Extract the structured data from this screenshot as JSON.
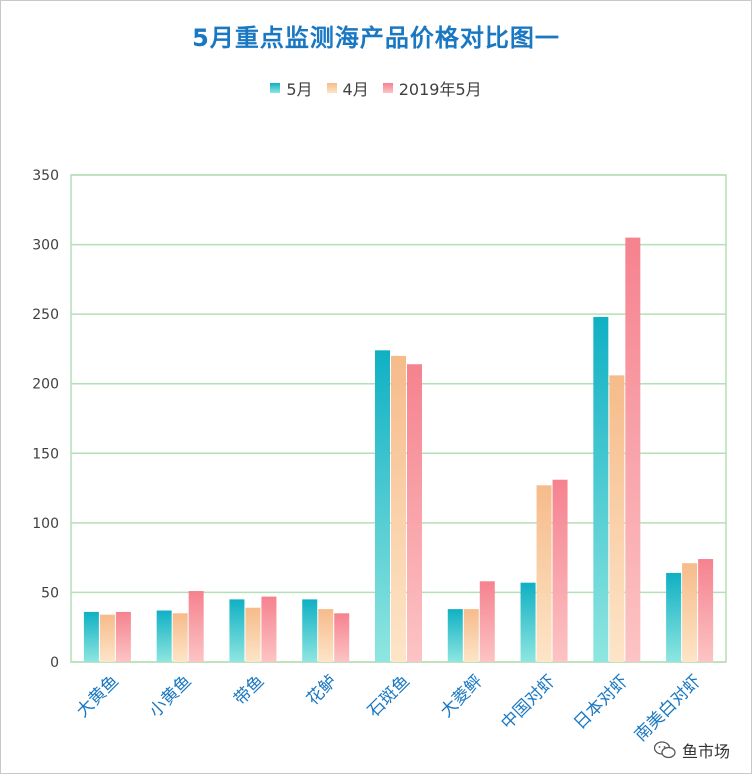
{
  "chart_data": {
    "type": "bar",
    "title": "5月重点监测海产品价格对比图一",
    "categories": [
      "大黄鱼",
      "小黄鱼",
      "带鱼",
      "花鲈",
      "石斑鱼",
      "大菱鲆",
      "中国对虾",
      "日本对虾",
      "南美白对虾"
    ],
    "series": [
      {
        "name": "5月",
        "values": [
          36,
          37,
          45,
          45,
          224,
          38,
          57,
          248,
          64
        ]
      },
      {
        "name": "4月",
        "values": [
          34,
          35,
          39,
          38,
          220,
          38,
          127,
          206,
          71
        ]
      },
      {
        "name": "2019年5月",
        "values": [
          36,
          51,
          47,
          35,
          214,
          58,
          131,
          305,
          74
        ]
      }
    ],
    "ylim": [
      0,
      350
    ],
    "yticks": [
      "0",
      "50",
      "100",
      "150",
      "200",
      "250",
      "300",
      "350"
    ],
    "grid": true,
    "legend_position": "top",
    "colors": {
      "series": [
        [
          "#0fb0c4",
          "#8fe6e0"
        ],
        [
          "#f6bb8a",
          "#fde5c8"
        ],
        [
          "#f5828f",
          "#fcc4c4"
        ]
      ],
      "grid": "#b5dfb5",
      "title": "#1a78c2",
      "category_label": "#1a78c2"
    }
  },
  "watermark": {
    "text": "鱼市场"
  }
}
